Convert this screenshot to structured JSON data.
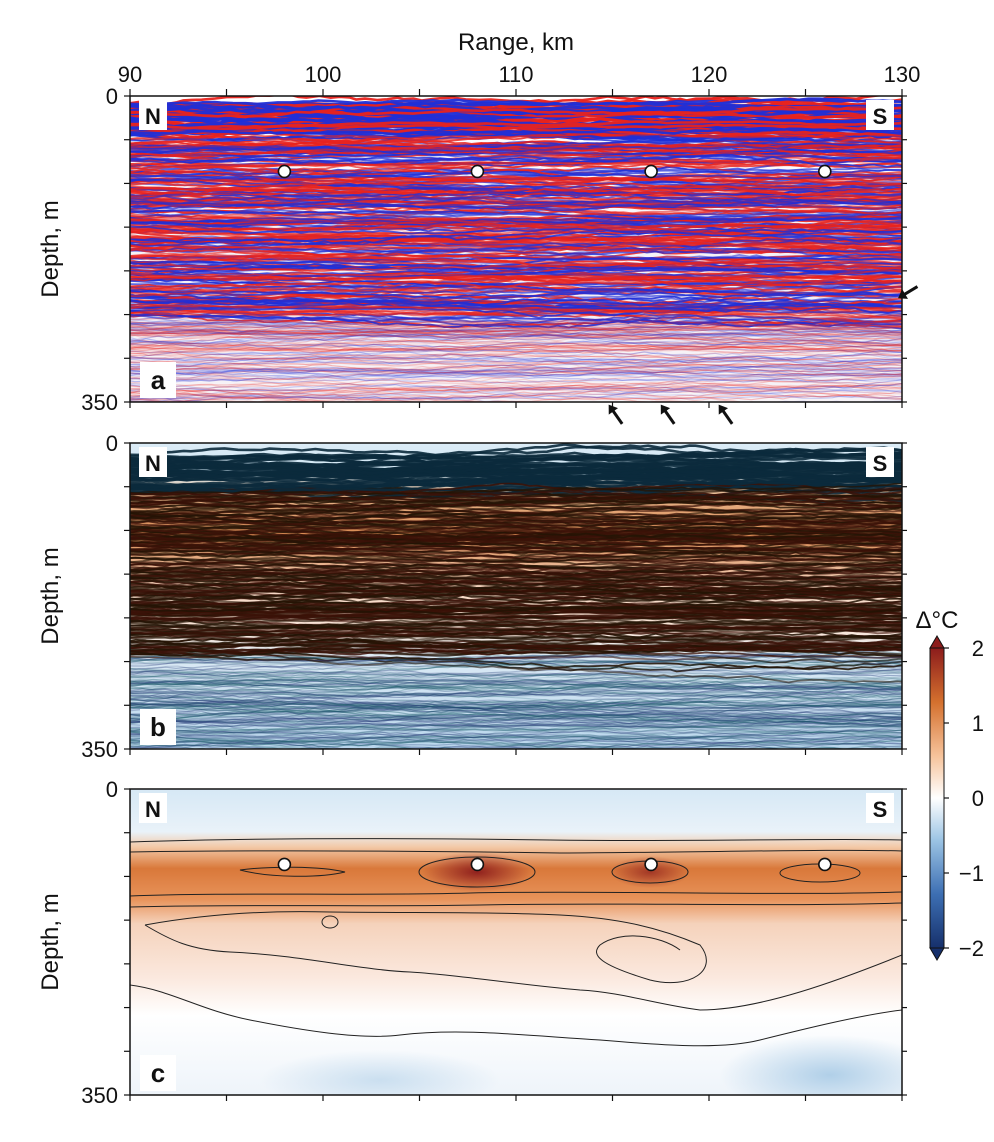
{
  "chart_data": {
    "type": "heatmap",
    "x_axis": {
      "title": "Range, km",
      "range": [
        90,
        130
      ],
      "ticks": [
        90,
        100,
        110,
        120,
        130
      ],
      "position": "top"
    },
    "y_axis": {
      "title": "Depth, m",
      "range": [
        0,
        350
      ],
      "ticks": [
        0,
        350
      ],
      "inverted": true
    },
    "markers_km": [
      98,
      108,
      117,
      126
    ],
    "marker_depth_m": 100,
    "panels": [
      {
        "id": "a",
        "letter": "a",
        "left": "N",
        "right": "S",
        "kind": "seismic reflection (red/blue)",
        "arrows": [
          {
            "range_km": 115.5,
            "depth_m": 375
          },
          {
            "range_km": 118.2,
            "depth_m": 375
          },
          {
            "range_km": 121.2,
            "depth_m": 375
          },
          {
            "range_km": 130.8,
            "depth_m": 218
          }
        ]
      },
      {
        "id": "b",
        "letter": "b",
        "left": "N",
        "right": "S",
        "kind": "seismic overlaid on temperature anomaly"
      },
      {
        "id": "c",
        "letter": "c",
        "left": "N",
        "right": "S",
        "kind": "temperature anomaly with contours"
      }
    ],
    "colorbar": {
      "label": "Δ°C",
      "range": [
        -2,
        2
      ],
      "ticks": [
        -2,
        -1,
        0,
        1,
        2
      ],
      "colors": [
        "#16306b",
        "#3d6fb3",
        "#9cc4e4",
        "#ffffff",
        "#f6c39b",
        "#d4702e",
        "#8c1c1c"
      ]
    }
  }
}
